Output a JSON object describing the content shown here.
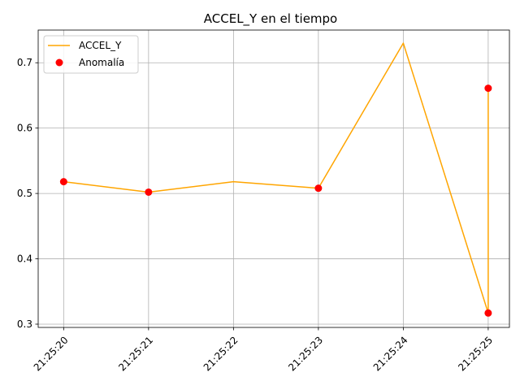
{
  "chart_data": {
    "type": "line",
    "title": "ACCEL_Y en el tiempo",
    "xlabel": "",
    "ylabel": "",
    "x_tick_labels": [
      "21:25:20",
      "21:25:21",
      "21:25:22",
      "21:25:23",
      "21:25:24",
      "21:25:25"
    ],
    "x_tick_values": [
      20,
      21,
      22,
      23,
      24,
      25
    ],
    "y_ticks": [
      0.3,
      0.4,
      0.5,
      0.6,
      0.7
    ],
    "y_tick_labels": [
      "0.3",
      "0.4",
      "0.5",
      "0.6",
      "0.7"
    ],
    "xlim": [
      19.7,
      25.25
    ],
    "ylim": [
      0.295,
      0.75
    ],
    "grid": true,
    "legend_position": "top-left",
    "series": [
      {
        "name": "ACCEL_Y",
        "kind": "line",
        "color": "#ffa500",
        "x": [
          20,
          21,
          22,
          23,
          24,
          25,
          25
        ],
        "y": [
          0.518,
          0.502,
          0.518,
          0.508,
          0.73,
          0.317,
          0.661
        ]
      },
      {
        "name": "Anomalía",
        "kind": "scatter",
        "color": "#ff0000",
        "x": [
          20,
          21,
          23,
          25,
          25
        ],
        "y": [
          0.518,
          0.502,
          0.508,
          0.317,
          0.661
        ]
      }
    ]
  }
}
